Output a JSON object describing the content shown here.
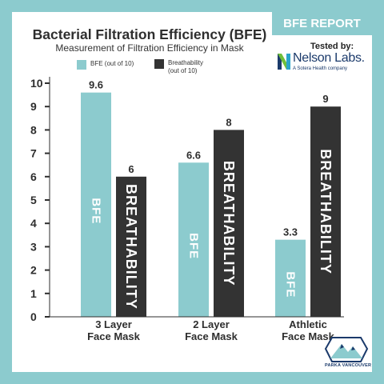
{
  "badge": "BFE REPORT",
  "tested_by": "Tested by:",
  "logo": {
    "name": "Nelson Labs.",
    "tagline": "A Sotera Health company",
    "icon": "nelson-labs-logo"
  },
  "footer_logo": {
    "text": "PARKA VANCOUVER",
    "icon": "mountain-logo"
  },
  "chart_data": {
    "type": "bar",
    "title": "Bacterial Filtration Efficiency (BFE)",
    "subtitle": "Measurement of Filtration Efficiency in Mask",
    "categories": [
      "3 Layer\nFace Mask",
      "2 Layer\nFace Mask",
      "Athletic\nFace Mask"
    ],
    "series": [
      {
        "name": "BFE (out of 10)",
        "label": "BFE",
        "values": [
          9.6,
          6.6,
          3.3
        ],
        "color": "#8ccbce"
      },
      {
        "name": "Breathability\n(out of 10)",
        "label": "BREATHABILITY",
        "values": [
          6,
          8,
          9
        ],
        "color": "#333333"
      }
    ],
    "data_labels": [
      [
        "9.6",
        "6.6",
        "3.3"
      ],
      [
        "6",
        "8",
        "9"
      ]
    ],
    "ylim": [
      0,
      10
    ],
    "yticks": [
      0,
      1,
      2,
      3,
      4,
      5,
      6,
      7,
      8,
      9,
      10
    ],
    "grid": false,
    "legend": "top-left"
  }
}
